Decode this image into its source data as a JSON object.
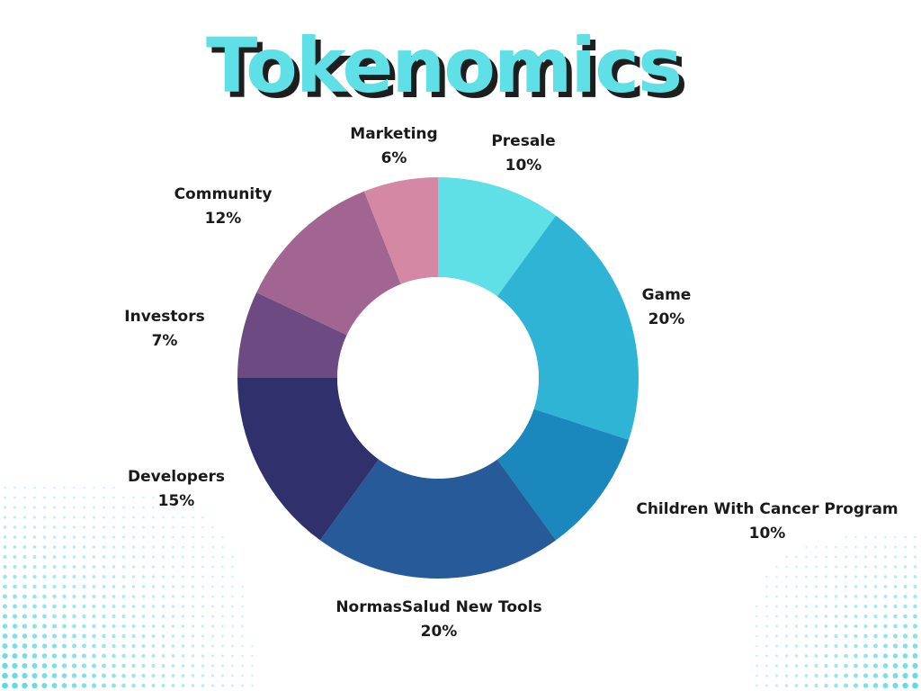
{
  "chart_data": {
    "type": "pie",
    "title": "Tokenomics",
    "slices": [
      {
        "label": "Presale",
        "value_text": "10%",
        "value": 10,
        "color": "#5ee0e6"
      },
      {
        "label": "Game",
        "value_text": "20%",
        "value": 20,
        "color": "#2fb4d6"
      },
      {
        "label": "Children With Cancer Program",
        "value_text": "10%",
        "value": 10,
        "color": "#1a88bc"
      },
      {
        "label": "NormasSalud New Tools",
        "value_text": "20%",
        "value": 20,
        "color": "#275a99"
      },
      {
        "label": "Developers",
        "value_text": "15%",
        "value": 15,
        "color": "#30306c"
      },
      {
        "label": "Investors",
        "value_text": "7%",
        "value": 7,
        "color": "#6d4a82"
      },
      {
        "label": "Community",
        "value_text": "12%",
        "value": 12,
        "color": "#a26591"
      },
      {
        "label": "Marketing",
        "value_text": "6%",
        "value": 6,
        "color": "#d488a4"
      }
    ],
    "title_color": "#5ee0e6",
    "title_shadow_color": "#1e1e1e",
    "dot_color": "#4fd6e0",
    "hole": true
  }
}
